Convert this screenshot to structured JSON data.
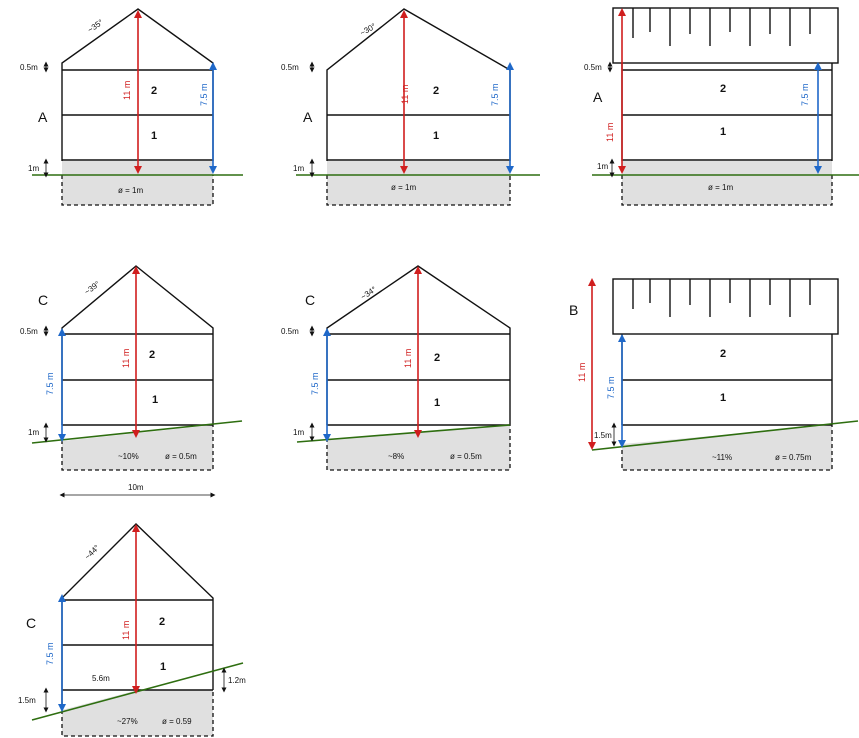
{
  "palette": {
    "height_total": "#d01e1e",
    "height_eave": "#1f68c9",
    "ground": "#2e6e10",
    "basement": "#e0e0e0"
  },
  "panels": [
    {
      "id": "p1",
      "zone": "A",
      "roof_angle": "~35°",
      "eave_step": "0.5m",
      "base_step": "1m",
      "height_total": "11 m",
      "height_eave": "7.5 m",
      "floors": [
        "2",
        "1"
      ],
      "slope": "",
      "diameter": "ø = 1m"
    },
    {
      "id": "p2",
      "zone": "A",
      "roof_angle": "~30°",
      "eave_step": "0.5m",
      "base_step": "1m",
      "height_total": "11 m",
      "height_eave": "7.5 m",
      "floors": [
        "2",
        "1"
      ],
      "slope": "",
      "diameter": "ø = 1m"
    },
    {
      "id": "p3",
      "zone": "A",
      "roof_angle": "",
      "eave_step": "0.5m",
      "base_step": "1m",
      "height_total": "11 m",
      "height_eave": "7.5 m",
      "floors": [
        "2",
        "1"
      ],
      "slope": "",
      "diameter": "ø = 1m"
    },
    {
      "id": "p4",
      "zone": "C",
      "roof_angle": "~39°",
      "eave_step": "0.5m",
      "base_step": "1m",
      "height_total": "11 m",
      "height_eave": "7.5 m",
      "floors": [
        "2",
        "1"
      ],
      "slope": "~10%",
      "diameter": "ø = 0.5m",
      "width": "10m"
    },
    {
      "id": "p5",
      "zone": "C",
      "roof_angle": "~34°",
      "eave_step": "0.5m",
      "base_step": "1m",
      "height_total": "11 m",
      "height_eave": "7.5 m",
      "floors": [
        "2",
        "1"
      ],
      "slope": "~8%",
      "diameter": "ø = 0.5m"
    },
    {
      "id": "p6",
      "zone": "B",
      "roof_angle": "",
      "eave_step": "",
      "base_step": "1.5m",
      "height_total": "11 m",
      "height_eave": "7.5 m",
      "floors": [
        "2",
        "1"
      ],
      "slope": "~11%",
      "diameter": "ø = 0.75m"
    },
    {
      "id": "p7",
      "zone": "C",
      "roof_angle": "~44°",
      "eave_step": "",
      "base_step": "1.5m",
      "height_total": "11 m",
      "height_eave": "7.5 m",
      "floors": [
        "2",
        "1"
      ],
      "slope": "~27%",
      "diameter": "ø = 0.59",
      "inner_width": "5.6m",
      "right_step": "1.2m"
    }
  ]
}
